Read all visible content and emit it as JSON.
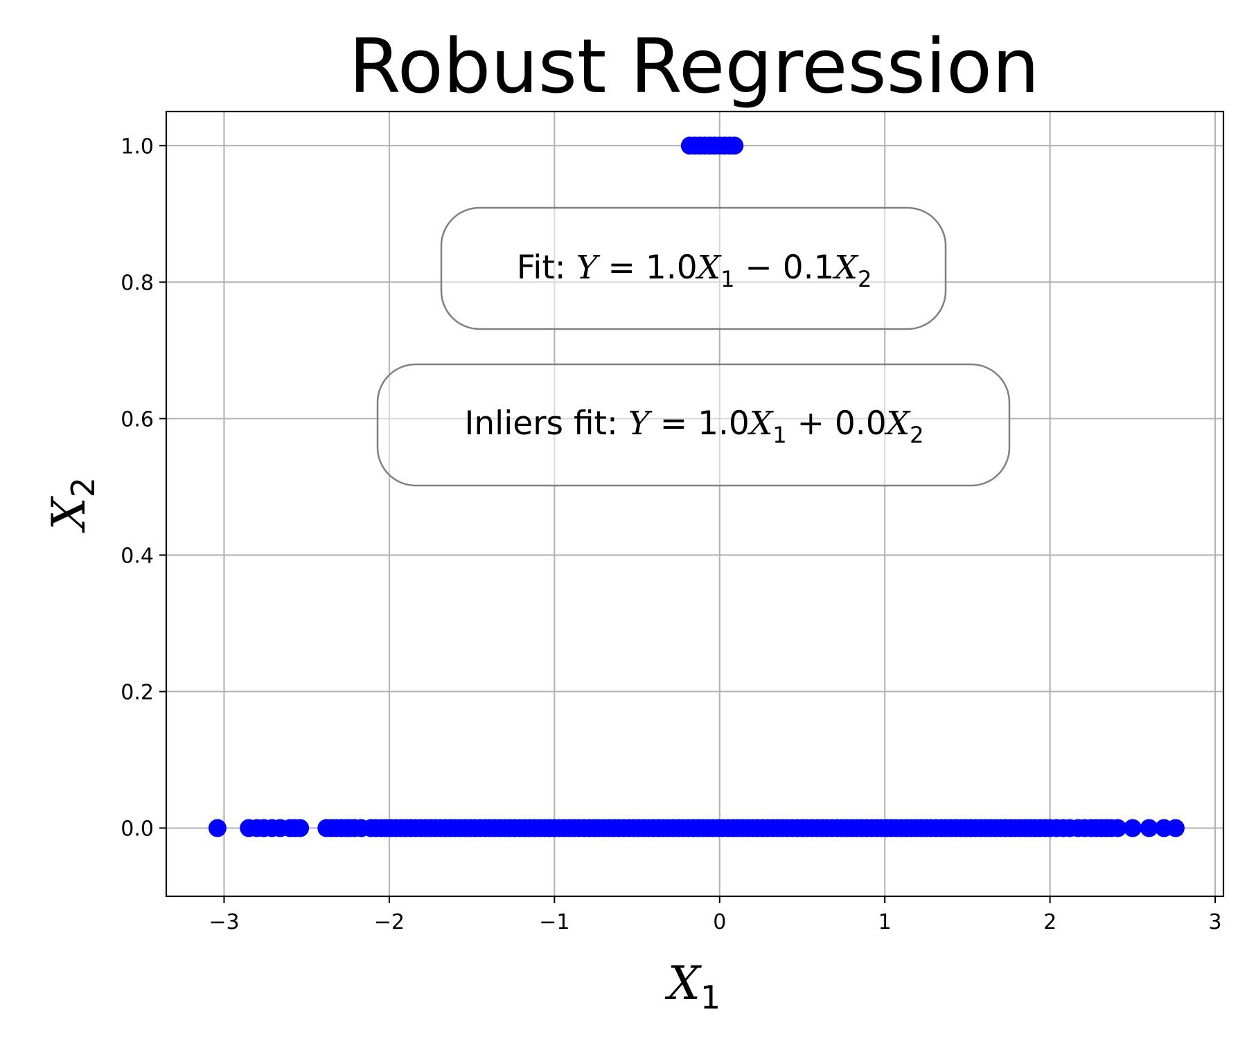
{
  "chart_data": {
    "type": "scatter",
    "title": "Robust Regression",
    "xlabel": {
      "var": "X",
      "sub": "1"
    },
    "ylabel": {
      "var": "X",
      "sub": "2"
    },
    "xlim": [
      -3.35,
      3.05
    ],
    "ylim": [
      -0.1,
      1.05
    ],
    "grid": true,
    "marker_color": "#0000ff",
    "x_ticks": [
      -3,
      -2,
      -1,
      0,
      1,
      2,
      3
    ],
    "x_tick_labels": [
      "−3",
      "−2",
      "−1",
      "0",
      "1",
      "2",
      "3"
    ],
    "y_ticks": [
      0.0,
      0.2,
      0.4,
      0.6,
      0.8,
      1.0
    ],
    "y_tick_labels": [
      "0.0",
      "0.2",
      "0.4",
      "0.6",
      "0.8",
      "1.0"
    ],
    "series": [
      {
        "y": 0,
        "x": [
          -3.04,
          -2.85,
          -2.8,
          -2.76,
          -2.71,
          -2.66,
          -2.6,
          -2.57,
          -2.54,
          -2.38,
          -2.35,
          -2.32,
          -2.29,
          -2.26,
          -2.24,
          -2.21,
          -2.17,
          -2.11,
          -2.08,
          -2.05,
          -2.02,
          -1.99,
          -1.96,
          -1.93,
          -1.9,
          -1.87,
          -1.84,
          -1.81,
          -1.78,
          -1.75,
          -1.72,
          -1.69,
          -1.66,
          -1.63,
          -1.6,
          -1.57,
          -1.54,
          -1.51,
          -1.48,
          -1.45,
          -1.42,
          -1.39,
          -1.36,
          -1.33,
          -1.3,
          -1.27,
          -1.24,
          -1.21,
          -1.18,
          -1.15,
          -1.12,
          -1.09,
          -1.06,
          -1.03,
          -1.0,
          -0.97,
          -0.94,
          -0.91,
          -0.88,
          -0.85,
          -0.82,
          -0.79,
          -0.76,
          -0.73,
          -0.7,
          -0.67,
          -0.64,
          -0.61,
          -0.58,
          -0.55,
          -0.52,
          -0.49,
          -0.46,
          -0.43,
          -0.4,
          -0.37,
          -0.34,
          -0.31,
          -0.28,
          -0.25,
          -0.22,
          -0.19,
          -0.16,
          -0.13,
          -0.1,
          -0.07,
          -0.04,
          -0.01,
          0.02,
          0.05,
          0.08,
          0.11,
          0.14,
          0.17,
          0.2,
          0.23,
          0.26,
          0.29,
          0.32,
          0.35,
          0.38,
          0.41,
          0.44,
          0.47,
          0.5,
          0.53,
          0.56,
          0.59,
          0.62,
          0.65,
          0.68,
          0.71,
          0.74,
          0.77,
          0.8,
          0.83,
          0.86,
          0.89,
          0.92,
          0.95,
          0.98,
          1.01,
          1.04,
          1.07,
          1.1,
          1.13,
          1.16,
          1.19,
          1.22,
          1.25,
          1.28,
          1.31,
          1.34,
          1.37,
          1.4,
          1.43,
          1.46,
          1.49,
          1.52,
          1.55,
          1.58,
          1.61,
          1.64,
          1.67,
          1.7,
          1.73,
          1.76,
          1.79,
          1.82,
          1.85,
          1.88,
          1.91,
          1.94,
          1.97,
          2.0,
          2.04,
          2.08,
          2.12,
          2.17,
          2.21,
          2.25,
          2.28,
          2.31,
          2.34,
          2.37,
          2.41,
          2.5,
          2.6,
          2.69,
          2.76
        ]
      },
      {
        "y": 1,
        "x": [
          -0.18,
          -0.15,
          -0.12,
          -0.09,
          -0.06,
          -0.03,
          0.0,
          0.03,
          0.06,
          0.09
        ]
      }
    ],
    "annotations": [
      {
        "prefix": "Fit: ",
        "lhs": "Y",
        "eq": " = ",
        "c1": "1.0",
        "v1": "X",
        "s1": "1",
        "op": " − ",
        "c2": "0.1",
        "v2": "X",
        "s2": "2"
      },
      {
        "prefix": "Inliers fit: ",
        "lhs": "Y",
        "eq": " = ",
        "c1": "1.0",
        "v1": "X",
        "s1": "1",
        "op": " + ",
        "c2": "0.0",
        "v2": "X",
        "s2": "2"
      }
    ]
  }
}
